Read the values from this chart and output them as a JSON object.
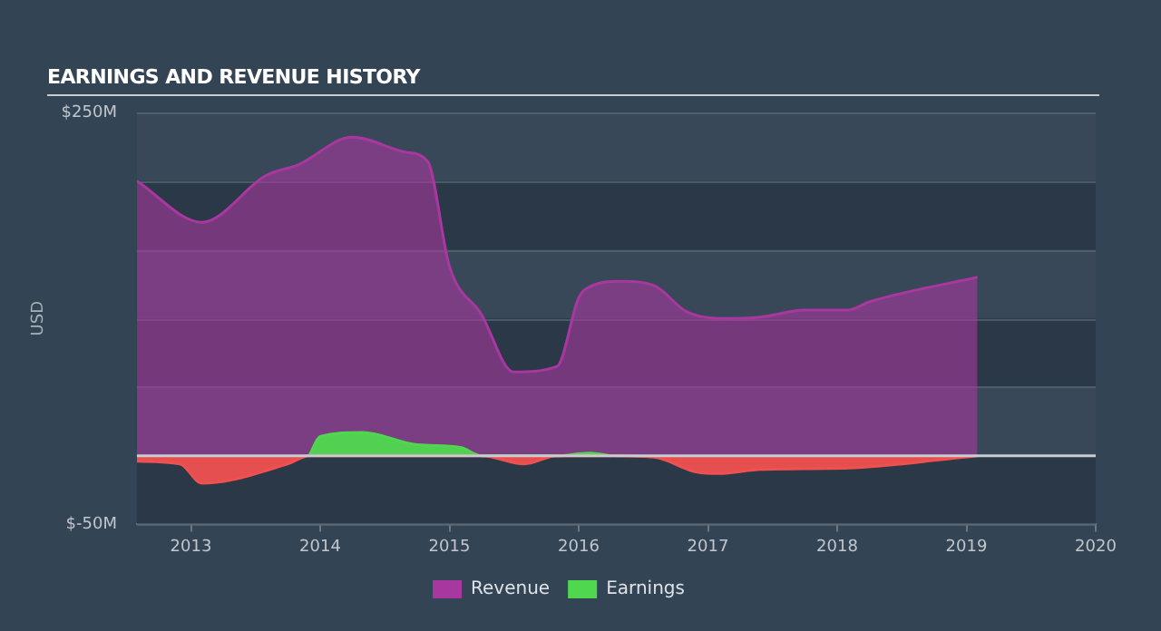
{
  "chart_data": {
    "type": "area",
    "title": "EARNINGS AND REVENUE HISTORY",
    "ylabel": "USD",
    "xlim": [
      "2012-08",
      "2020-01"
    ],
    "xticks": [
      "2013",
      "2014",
      "2015",
      "2016",
      "2017",
      "2018",
      "2019",
      "2020"
    ],
    "ylim": [
      -50,
      250
    ],
    "yticks": [
      {
        "value": -50,
        "label": "$-50M"
      },
      {
        "value": 0,
        "label": null
      },
      {
        "value": 50,
        "label": null
      },
      {
        "value": 100,
        "label": null
      },
      {
        "value": 150,
        "label": null
      },
      {
        "value": 200,
        "label": null
      },
      {
        "value": 250,
        "label": "$250M"
      }
    ],
    "grid": "y",
    "legend": "bottom",
    "ref_lines": [
      {
        "axis": "y",
        "value": 0,
        "color": "#c8ccd0"
      }
    ],
    "series": [
      {
        "name": "Revenue",
        "color": "#a8389f",
        "x": [
          "2012-08",
          "2013-02",
          "2013-08",
          "2013-11",
          "2014-04",
          "2014-09",
          "2014-11",
          "2015-01",
          "2015-04",
          "2015-07",
          "2015-11",
          "2016-01",
          "2016-02",
          "2016-05",
          "2016-08",
          "2016-11",
          "2017-02",
          "2017-06",
          "2017-10",
          "2018-02",
          "2018-04",
          "2019-02"
        ],
        "values": [
          200,
          170,
          204,
          212,
          232,
          221,
          214,
          138,
          103,
          61,
          65,
          115,
          123,
          127,
          124,
          105,
          100,
          101,
          106,
          106,
          112,
          130
        ]
      },
      {
        "name": "Earnings",
        "color": "#4fd84f",
        "x": [
          "2013-12",
          "2014-01",
          "2014-05",
          "2014-10",
          "2015-02",
          "2015-04",
          "2015-11",
          "2016-02",
          "2016-04"
        ],
        "values": [
          0,
          14,
          17,
          8,
          6,
          0,
          0,
          2,
          0
        ]
      },
      {
        "color": "#ef5050",
        "x": [
          "2012-08",
          "2012-12",
          "2013-02",
          "2013-10",
          "2013-12",
          "2015-04",
          "2015-08",
          "2015-11",
          "2016-04",
          "2016-08",
          "2016-12",
          "2017-02",
          "2017-06",
          "2018-02",
          "2019-02"
        ],
        "values": [
          -4,
          -6,
          -20,
          -6,
          0,
          0,
          -6,
          0,
          0,
          -1,
          -12,
          -13,
          -10,
          -9,
          0
        ]
      }
    ]
  }
}
